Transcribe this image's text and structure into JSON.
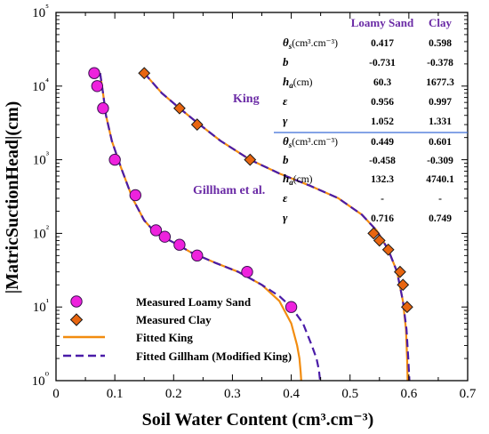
{
  "colors": {
    "king_line": "#f28c0f",
    "gillham_line": "#4a1ca8",
    "loamy_sand_marker": "#ee22dd",
    "clay_marker": "#e8650f",
    "accent_purple": "#6a2aa5",
    "table_divider": "#3a6cd8"
  },
  "chart_data": {
    "type": "scatter",
    "xlabel": "Soil Water Content (cm³.cm⁻³)",
    "ylabel": "|MatricSuctionHead|(cm)",
    "xlim": [
      0,
      0.7
    ],
    "ylim": [
      1,
      100000
    ],
    "yscale": "log",
    "x_ticks": [
      "0",
      "0.1",
      "0.2",
      "0.3",
      "0.4",
      "0.5",
      "0.6",
      "0.7"
    ],
    "y_ticks": [
      "10⁰",
      "10¹",
      "10²",
      "10³",
      "10⁴",
      "10⁵"
    ],
    "legend": {
      "position": "bottom-left",
      "entries": [
        {
          "label": "Measured Loamy Sand",
          "icon": "circle-marker-icon"
        },
        {
          "label": "Measured Clay",
          "icon": "diamond-marker-icon"
        },
        {
          "label": "Fitted King",
          "icon": "solid-line-icon"
        },
        {
          "label": "Fitted Gillham (Modified King)",
          "icon": "dashed-line-icon"
        }
      ]
    },
    "series": [
      {
        "name": "Measured Loamy Sand",
        "type": "scatter",
        "x": [
          0.065,
          0.07,
          0.08,
          0.1,
          0.135,
          0.17,
          0.185,
          0.21,
          0.24,
          0.325,
          0.4
        ],
        "y": [
          15000,
          10000,
          5000,
          1000,
          330,
          110,
          90,
          70,
          50,
          30,
          10
        ]
      },
      {
        "name": "Measured Clay",
        "type": "scatter",
        "x": [
          0.15,
          0.21,
          0.24,
          0.33,
          0.54,
          0.55,
          0.565,
          0.585,
          0.59,
          0.597
        ],
        "y": [
          15000,
          5000,
          3000,
          1000,
          100,
          80,
          60,
          30,
          20,
          10
        ]
      },
      {
        "name": "Fitted King",
        "type": "line",
        "style": "solid",
        "curves": [
          {
            "x": [
              0.075,
              0.08,
              0.085,
              0.095,
              0.11,
              0.13,
              0.15,
              0.17,
              0.2,
              0.23,
              0.27,
              0.31,
              0.35,
              0.38,
              0.4,
              0.41,
              0.414,
              0.416,
              0.417
            ],
            "y": [
              15000,
              8000,
              4000,
              1800,
              800,
              300,
              150,
              100,
              75,
              55,
              40,
              30,
              20,
              12,
              6,
              3,
              2,
              1.3,
              1
            ]
          },
          {
            "x": [
              0.15,
              0.18,
              0.21,
              0.24,
              0.28,
              0.33,
              0.38,
              0.43,
              0.48,
              0.52,
              0.545,
              0.565,
              0.58,
              0.59,
              0.595,
              0.597,
              0.598
            ],
            "y": [
              15000,
              8000,
              5000,
              3200,
              1800,
              1000,
              650,
              450,
              300,
              180,
              110,
              60,
              30,
              12,
              5,
              2,
              1
            ]
          }
        ]
      },
      {
        "name": "Fitted Gillham (Modified King)",
        "type": "line",
        "style": "dashed",
        "curves": [
          {
            "x": [
              0.075,
              0.08,
              0.085,
              0.095,
              0.11,
              0.13,
              0.15,
              0.17,
              0.2,
              0.23,
              0.27,
              0.31,
              0.35,
              0.38,
              0.4,
              0.42,
              0.435,
              0.443,
              0.447,
              0.449
            ],
            "y": [
              15000,
              8000,
              4000,
              1800,
              800,
              300,
              150,
              100,
              75,
              55,
              40,
              30,
              20,
              14,
              10,
              6,
              3,
              2,
              1.4,
              1
            ]
          },
          {
            "x": [
              0.15,
              0.18,
              0.21,
              0.24,
              0.28,
              0.33,
              0.38,
              0.43,
              0.48,
              0.52,
              0.545,
              0.565,
              0.58,
              0.59,
              0.596,
              0.599,
              0.601
            ],
            "y": [
              15000,
              8000,
              5000,
              3200,
              1800,
              1000,
              650,
              450,
              300,
              180,
              110,
              60,
              30,
              12,
              5,
              2,
              1
            ]
          }
        ]
      }
    ],
    "annotations": {
      "king": "King",
      "gillham": "Gillham et al."
    },
    "parameter_table": {
      "columns": [
        "Loamy Sand",
        "Clay"
      ],
      "king_rows": [
        {
          "symbol": "θ",
          "subscript": "s",
          "unit": "(cm³.cm⁻³)",
          "values": [
            "0.417",
            "0.598"
          ]
        },
        {
          "symbol": "b",
          "subscript": "",
          "unit": "",
          "values": [
            "-0.731",
            "-0.378"
          ]
        },
        {
          "symbol": "h",
          "subscript": "a",
          "unit": "(cm)",
          "values": [
            "60.3",
            "1677.3"
          ]
        },
        {
          "symbol": "ε",
          "subscript": "",
          "unit": "",
          "values": [
            "0.956",
            "0.997"
          ]
        },
        {
          "symbol": "γ",
          "subscript": "",
          "unit": "",
          "values": [
            "1.052",
            "1.331"
          ]
        }
      ],
      "gillham_rows": [
        {
          "symbol": "θ",
          "subscript": "s",
          "unit": "(cm³.cm⁻³)",
          "values": [
            "0.449",
            "0.601"
          ]
        },
        {
          "symbol": "b",
          "subscript": "",
          "unit": "",
          "values": [
            "-0.458",
            "-0.309"
          ]
        },
        {
          "symbol": "h",
          "subscript": "a",
          "unit": "(cm)",
          "values": [
            "132.3",
            "4740.1"
          ]
        },
        {
          "symbol": "ε",
          "subscript": "",
          "unit": "",
          "values": [
            "-",
            "-"
          ]
        },
        {
          "symbol": "γ",
          "subscript": "",
          "unit": "",
          "values": [
            "0.716",
            "0.749"
          ]
        }
      ]
    }
  }
}
